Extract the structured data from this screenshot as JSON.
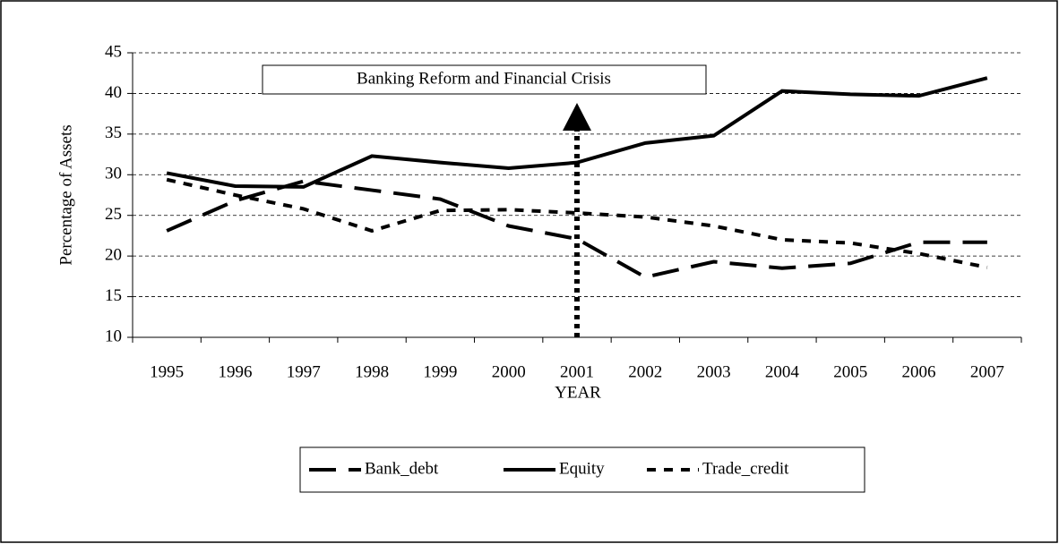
{
  "chart_data": {
    "type": "line",
    "xlabel": "YEAR",
    "ylabel": "Percentage of Assets",
    "categories": [
      "1995",
      "1996",
      "1997",
      "1998",
      "1999",
      "2000",
      "2001",
      "2002",
      "2003",
      "2004",
      "2005",
      "2006",
      "2007"
    ],
    "series": [
      {
        "name": "Bank_debt",
        "color": "#000000",
        "linestyle": "dashed",
        "values": [
          23.1,
          26.8,
          29.2,
          28.1,
          27.0,
          23.7,
          22.1,
          17.4,
          19.3,
          18.5,
          19.1,
          21.7,
          21.7
        ]
      },
      {
        "name": "Equity",
        "color": "#000000",
        "linestyle": "solid",
        "values": [
          30.2,
          28.6,
          28.5,
          32.3,
          31.5,
          30.8,
          31.5,
          33.9,
          34.8,
          40.3,
          39.9,
          39.7,
          41.9
        ]
      },
      {
        "name": "Trade_credit",
        "color": "#000000",
        "linestyle": "dotted",
        "values": [
          29.4,
          27.5,
          25.8,
          23.1,
          25.6,
          25.7,
          25.3,
          24.8,
          23.7,
          22.0,
          21.6,
          20.3,
          18.6
        ]
      }
    ],
    "ylim": [
      10,
      45
    ],
    "yticks": [
      10,
      15,
      20,
      25,
      30,
      35,
      40,
      45
    ],
    "grid": true,
    "legend": "bottom",
    "annotation": {
      "text": "Banking Reform and Financial Crisis",
      "x": "2001"
    }
  }
}
